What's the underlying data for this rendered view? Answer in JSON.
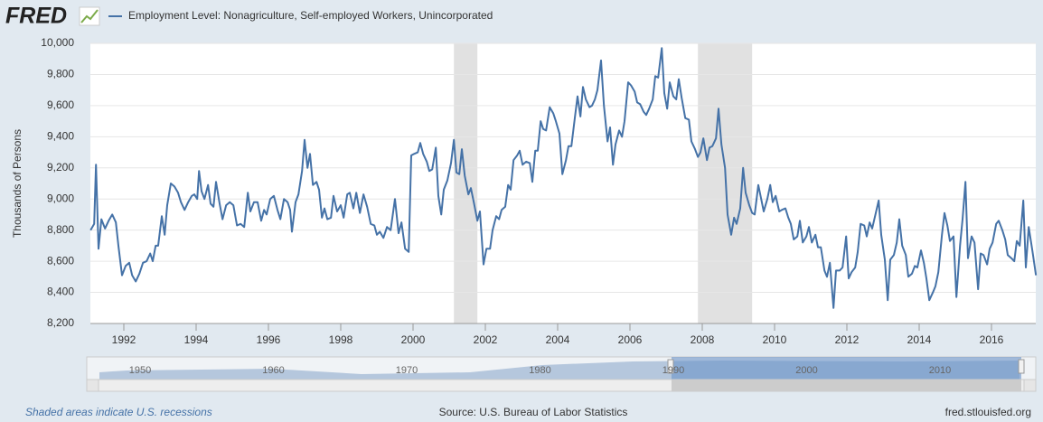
{
  "logo": "FRED",
  "chart_data": {
    "type": "line",
    "yaxis_label": "Thousands of Persons",
    "x": [
      1991.08,
      1991.18,
      1991.23,
      1991.3,
      1991.38,
      1991.48,
      1991.58,
      1991.68,
      1991.78,
      1991.85,
      1991.95,
      1992.05,
      1992.15,
      1992.23,
      1992.33,
      1992.43,
      1992.53,
      1992.63,
      1992.73,
      1992.8,
      1992.88,
      1992.95,
      1993.05,
      1993.13,
      1993.2,
      1993.3,
      1993.4,
      1993.5,
      1993.58,
      1993.68,
      1993.78,
      1993.88,
      1993.95,
      1994.03,
      1994.08,
      1994.15,
      1994.23,
      1994.33,
      1994.4,
      1994.48,
      1994.55,
      1994.65,
      1994.73,
      1994.83,
      1994.93,
      1995.03,
      1995.13,
      1995.23,
      1995.33,
      1995.43,
      1995.5,
      1995.6,
      1995.7,
      1995.8,
      1995.88,
      1995.95,
      1996.05,
      1996.15,
      1996.25,
      1996.33,
      1996.43,
      1996.53,
      1996.6,
      1996.65,
      1996.75,
      1996.83,
      1996.93,
      1997.0,
      1997.08,
      1997.15,
      1997.23,
      1997.33,
      1997.4,
      1997.48,
      1997.55,
      1997.63,
      1997.73,
      1997.8,
      1997.9,
      1998.0,
      1998.08,
      1998.18,
      1998.25,
      1998.35,
      1998.43,
      1998.53,
      1998.63,
      1998.73,
      1998.83,
      1998.93,
      1999.0,
      1999.08,
      1999.18,
      1999.28,
      1999.38,
      1999.5,
      1999.6,
      1999.68,
      1999.78,
      1999.88,
      1999.95,
      2000.03,
      2000.13,
      2000.2,
      2000.28,
      2000.38,
      2000.45,
      2000.53,
      2000.63,
      2000.7,
      2000.78,
      2000.85,
      2000.95,
      2001.05,
      2001.13,
      2001.2,
      2001.28,
      2001.35,
      2001.43,
      2001.53,
      2001.6,
      2001.68,
      2001.78,
      2001.85,
      2001.95,
      2002.03,
      2002.13,
      2002.2,
      2002.3,
      2002.38,
      2002.45,
      2002.55,
      2002.63,
      2002.7,
      2002.78,
      2002.88,
      2002.95,
      2003.03,
      2003.13,
      2003.23,
      2003.3,
      2003.38,
      2003.45,
      2003.53,
      2003.6,
      2003.68,
      2003.78,
      2003.88,
      2003.95,
      2004.05,
      2004.13,
      2004.23,
      2004.3,
      2004.38,
      2004.48,
      2004.55,
      2004.63,
      2004.7,
      2004.78,
      2004.88,
      2004.95,
      2005.03,
      2005.1,
      2005.2,
      2005.28,
      2005.38,
      2005.45,
      2005.53,
      2005.6,
      2005.7,
      2005.78,
      2005.85,
      2005.95,
      2006.03,
      2006.13,
      2006.2,
      2006.28,
      2006.38,
      2006.45,
      2006.53,
      2006.63,
      2006.7,
      2006.78,
      2006.88,
      2006.95,
      2007.03,
      2007.1,
      2007.2,
      2007.28,
      2007.35,
      2007.43,
      2007.53,
      2007.63,
      2007.7,
      2007.8,
      2007.88,
      2007.95,
      2008.03,
      2008.13,
      2008.2,
      2008.28,
      2008.38,
      2008.45,
      2008.53,
      2008.63,
      2008.7,
      2008.8,
      2008.88,
      2008.95,
      2009.05,
      2009.13,
      2009.2,
      2009.3,
      2009.38,
      2009.45,
      2009.55,
      2009.63,
      2009.7,
      2009.8,
      2009.88,
      2009.95,
      2010.03,
      2010.13,
      2010.2,
      2010.3,
      2010.38,
      2010.45,
      2010.53,
      2010.63,
      2010.7,
      2010.78,
      2010.88,
      2010.95,
      2011.03,
      2011.13,
      2011.2,
      2011.28,
      2011.38,
      2011.45,
      2011.53,
      2011.63,
      2011.7,
      2011.8,
      2011.88,
      2011.98,
      2012.05,
      2012.13,
      2012.23,
      2012.3,
      2012.38,
      2012.48,
      2012.55,
      2012.63,
      2012.7,
      2012.8,
      2012.88,
      2012.95,
      2013.05,
      2013.13,
      2013.2,
      2013.3,
      2013.38,
      2013.45,
      2013.53,
      2013.63,
      2013.7,
      2013.8,
      2013.88,
      2013.95,
      2014.05,
      2014.13,
      2014.2,
      2014.28,
      2014.38,
      2014.45,
      2014.53,
      2014.63,
      2014.7,
      2014.78,
      2014.85,
      2014.95,
      2015.03,
      2015.13,
      2015.2,
      2015.28,
      2015.35,
      2015.45,
      2015.53,
      2015.63,
      2015.7,
      2015.78,
      2015.88,
      2015.95,
      2016.03,
      2016.13,
      2016.2,
      2016.3,
      2016.38,
      2016.45,
      2016.55,
      2016.63,
      2016.7,
      2016.78,
      2016.88,
      2016.95,
      2017.03,
      2017.13,
      2017.23
    ],
    "series": [
      {
        "name": "Employment Level: Nonagriculture, Self-employed Workers, Unincorporated",
        "color": "#4572a7",
        "values": [
          8800,
          8840,
          9220,
          8680,
          8870,
          8810,
          8860,
          8900,
          8850,
          8700,
          8510,
          8570,
          8590,
          8510,
          8470,
          8520,
          8590,
          8600,
          8650,
          8600,
          8700,
          8700,
          8890,
          8770,
          8960,
          9100,
          9080,
          9040,
          8980,
          8930,
          8980,
          9020,
          9030,
          9000,
          9180,
          9050,
          9000,
          9090,
          8970,
          8950,
          9110,
          8970,
          8870,
          8960,
          8980,
          8960,
          8830,
          8840,
          8820,
          9040,
          8920,
          8980,
          8980,
          8860,
          8930,
          8900,
          9000,
          9020,
          8930,
          8870,
          9000,
          8980,
          8930,
          8790,
          8980,
          9030,
          9180,
          9380,
          9200,
          9290,
          9090,
          9110,
          9060,
          8880,
          8940,
          8870,
          8880,
          9020,
          8920,
          8960,
          8880,
          9030,
          9040,
          8940,
          9040,
          8910,
          9030,
          8950,
          8840,
          8830,
          8770,
          8790,
          8750,
          8820,
          8800,
          9000,
          8780,
          8850,
          8680,
          8660,
          9280,
          9290,
          9300,
          9360,
          9290,
          9240,
          9180,
          9190,
          9330,
          9020,
          8900,
          9060,
          9120,
          9230,
          9380,
          9170,
          9160,
          9320,
          9150,
          9030,
          9070,
          8980,
          8860,
          8920,
          8580,
          8680,
          8680,
          8800,
          8890,
          8870,
          8930,
          8950,
          9090,
          9060,
          9250,
          9280,
          9310,
          9220,
          9240,
          9230,
          9110,
          9310,
          9310,
          9500,
          9450,
          9440,
          9590,
          9550,
          9500,
          9420,
          9160,
          9250,
          9340,
          9340,
          9530,
          9660,
          9530,
          9720,
          9640,
          9590,
          9600,
          9640,
          9700,
          9890,
          9600,
          9370,
          9460,
          9220,
          9350,
          9440,
          9400,
          9500,
          9750,
          9730,
          9690,
          9620,
          9610,
          9560,
          9540,
          9580,
          9640,
          9790,
          9780,
          9970,
          9680,
          9580,
          9750,
          9660,
          9640,
          9770,
          9650,
          9520,
          9510,
          9370,
          9320,
          9270,
          9300,
          9390,
          9250,
          9330,
          9340,
          9390,
          9580,
          9350,
          9200,
          8900,
          8770,
          8880,
          8840,
          8940,
          9200,
          9040,
          8960,
          8910,
          8900,
          9090,
          9000,
          8920,
          9000,
          9090,
          8980,
          9020,
          8920,
          8930,
          8940,
          8880,
          8840,
          8740,
          8760,
          8860,
          8720,
          8760,
          8820,
          8720,
          8770,
          8690,
          8690,
          8540,
          8500,
          8590,
          8300,
          8540,
          8540,
          8560,
          8760,
          8490,
          8530,
          8560,
          8660,
          8840,
          8830,
          8760,
          8850,
          8810,
          8910,
          8990,
          8770,
          8610,
          8350,
          8610,
          8640,
          8720,
          8870,
          8700,
          8640,
          8500,
          8520,
          8570,
          8560,
          8670,
          8590,
          8490,
          8350,
          8400,
          8440,
          8530,
          8770,
          8910,
          8830,
          8730,
          8760,
          8370,
          8700,
          8870,
          9110,
          8620,
          8760,
          8720,
          8420,
          8650,
          8640,
          8580,
          8680,
          8720,
          8840,
          8860,
          8800,
          8740,
          8640,
          8620,
          8600,
          8730,
          8700,
          8990,
          8560,
          8820,
          8670,
          8510
        ]
      }
    ],
    "xlim": [
      1991.075,
      2017.225
    ],
    "xticks": [
      1992,
      1994,
      1996,
      1998,
      2000,
      2002,
      2004,
      2006,
      2008,
      2010,
      2012,
      2014,
      2016
    ],
    "ylim": [
      8200,
      10000
    ],
    "yticks": [
      {
        "value": 8200,
        "label": "8,200"
      },
      {
        "value": 8400,
        "label": "8,400"
      },
      {
        "value": 8600,
        "label": "8,600"
      },
      {
        "value": 8800,
        "label": "8,800"
      },
      {
        "value": 9000,
        "label": "9,000"
      },
      {
        "value": 9200,
        "label": "9,200"
      },
      {
        "value": 9400,
        "label": "9,400"
      },
      {
        "value": 9600,
        "label": "9,600"
      },
      {
        "value": 9800,
        "label": "9,800"
      },
      {
        "value": 10000,
        "label": "10,000"
      }
    ],
    "grid": true,
    "recessions": [
      [
        2001.13,
        2001.78
      ],
      [
        2007.88,
        2009.38
      ]
    ],
    "recession_color": "#e1e1e1"
  },
  "navigator": {
    "labels": [
      "1950",
      "1960",
      "1970",
      "1980",
      "1990",
      "2000",
      "2010"
    ]
  },
  "footer": {
    "note": "Shaded areas indicate U.S. recessions",
    "source": "Source: U.S. Bureau of Labor Statistics",
    "url": "fred.stlouisfed.org"
  }
}
